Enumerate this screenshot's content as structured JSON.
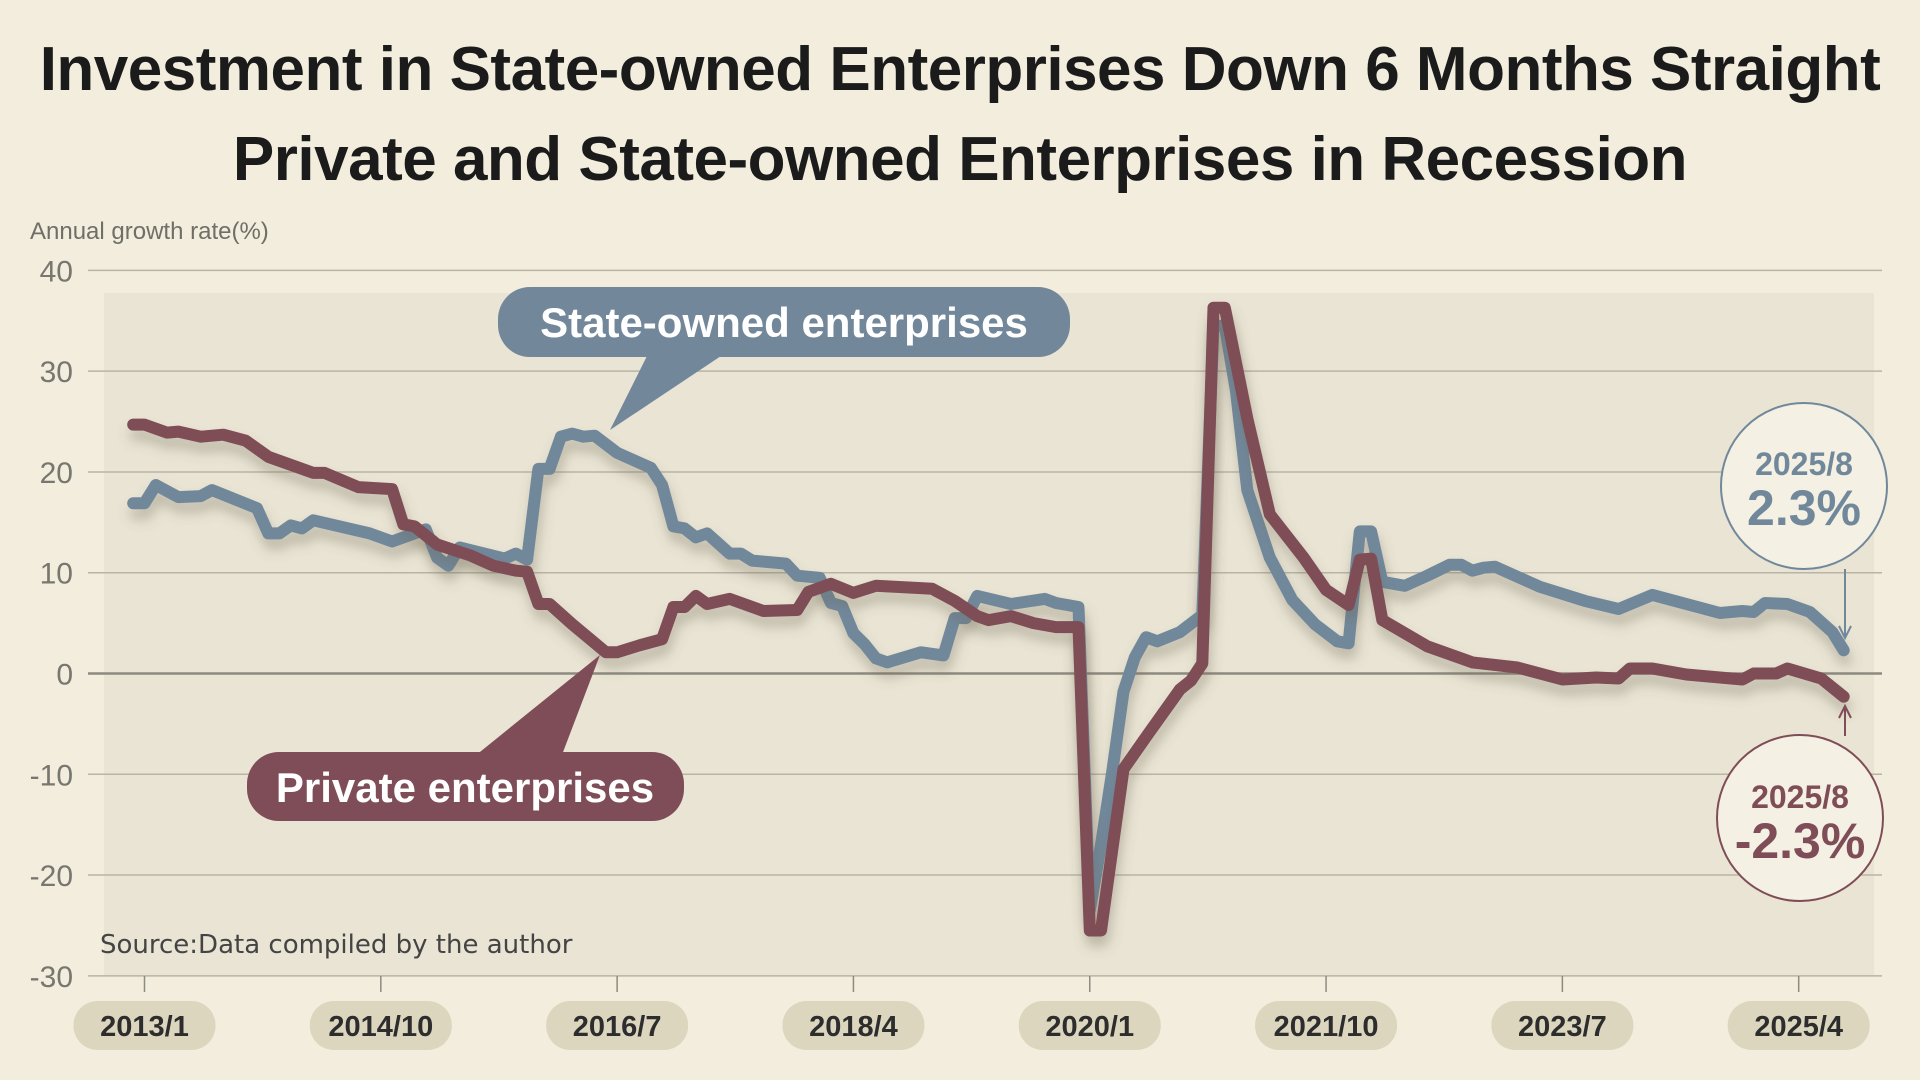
{
  "title": {
    "line1": "Investment in State-owned Enterprises Down 6 Months Straight",
    "line2": "Private and State-owned Enterprises in Recession"
  },
  "source": "Source:Data compiled by the author",
  "chart_data": {
    "type": "line",
    "title": "Investment in State-owned Enterprises Down 6 Months Straight / Private and State-owned Enterprises in Recession",
    "ylabel": "Annual growth rate(%)",
    "xlabel": "",
    "x_unit": "months since 2013/1",
    "ylim": [
      -30,
      40
    ],
    "yticks": [
      40,
      30,
      20,
      10,
      0,
      -10,
      -20,
      -30
    ],
    "xticks": [
      "2013/1",
      "2014/10",
      "2016/7",
      "2018/4",
      "2020/1",
      "2021/10",
      "2023/7",
      "2025/4"
    ],
    "grid": true,
    "colors": {
      "state": "#71889b",
      "private": "#7f4d57",
      "background": "#f2eddd",
      "plot": "#e9e4d4",
      "pill": "#ddd6bf"
    },
    "series": [
      {
        "name": "State-owned enterprises",
        "key": "state",
        "points": [
          [
            -1,
            16.9
          ],
          [
            0,
            16.9
          ],
          [
            1,
            18.7
          ],
          [
            3,
            17.5
          ],
          [
            5,
            17.6
          ],
          [
            6,
            18.2
          ],
          [
            10,
            16.4
          ],
          [
            11,
            13.9
          ],
          [
            12,
            13.9
          ],
          [
            13,
            14.7
          ],
          [
            14,
            14.4
          ],
          [
            15,
            15.2
          ],
          [
            20,
            13.9
          ],
          [
            22,
            13.1
          ],
          [
            25,
            14.3
          ],
          [
            26,
            11.5
          ],
          [
            27,
            10.7
          ],
          [
            28,
            12.5
          ],
          [
            32,
            11.4
          ],
          [
            33,
            11.9
          ],
          [
            34,
            11.3
          ],
          [
            35,
            20.3
          ],
          [
            36,
            20.3
          ],
          [
            37,
            23.5
          ],
          [
            38,
            23.8
          ],
          [
            39,
            23.5
          ],
          [
            40,
            23.6
          ],
          [
            42,
            21.9
          ],
          [
            45,
            20.4
          ],
          [
            46,
            18.7
          ],
          [
            47,
            14.6
          ],
          [
            48,
            14.4
          ],
          [
            49,
            13.5
          ],
          [
            50,
            13.9
          ],
          [
            52,
            11.9
          ],
          [
            53,
            11.9
          ],
          [
            54,
            11.2
          ],
          [
            57,
            10.9
          ],
          [
            58,
            9.7
          ],
          [
            60,
            9.5
          ],
          [
            61,
            7.0
          ],
          [
            62,
            6.7
          ],
          [
            63,
            4.0
          ],
          [
            64,
            2.9
          ],
          [
            65,
            1.5
          ],
          [
            66,
            1.1
          ],
          [
            69,
            2.1
          ],
          [
            71,
            1.8
          ],
          [
            72,
            5.5
          ],
          [
            73,
            5.5
          ],
          [
            74,
            7.7
          ],
          [
            77,
            6.9
          ],
          [
            80,
            7.4
          ],
          [
            81,
            7.0
          ],
          [
            82,
            6.8
          ],
          [
            83,
            6.6
          ],
          [
            84,
            -23.5
          ],
          [
            85,
            -17.0
          ],
          [
            86,
            -9.7
          ],
          [
            87,
            -1.8
          ],
          [
            88,
            1.6
          ],
          [
            89,
            3.6
          ],
          [
            90,
            3.2
          ],
          [
            92,
            4.1
          ],
          [
            94,
            5.8
          ],
          [
            95,
            34.5
          ],
          [
            96,
            34.5
          ],
          [
            97,
            28.0
          ],
          [
            98,
            18.2
          ],
          [
            100,
            11.5
          ],
          [
            102,
            7.3
          ],
          [
            104,
            4.9
          ],
          [
            106,
            3.2
          ],
          [
            107,
            3.0
          ],
          [
            108,
            14.1
          ],
          [
            109,
            14.1
          ],
          [
            110,
            9.1
          ],
          [
            112,
            8.7
          ],
          [
            114,
            9.7
          ],
          [
            116,
            10.8
          ],
          [
            117,
            10.8
          ],
          [
            118,
            10.2
          ],
          [
            119,
            10.5
          ],
          [
            120,
            10.6
          ],
          [
            124,
            8.6
          ],
          [
            128,
            7.2
          ],
          [
            131,
            6.4
          ],
          [
            134,
            7.8
          ],
          [
            140,
            6.0
          ],
          [
            142,
            6.2
          ],
          [
            143,
            6.1
          ],
          [
            144,
            7.0
          ],
          [
            146,
            6.9
          ],
          [
            148,
            6.1
          ],
          [
            150,
            4.1
          ],
          [
            151,
            2.3
          ]
        ]
      },
      {
        "name": "Private enterprises",
        "key": "private",
        "points": [
          [
            -1,
            24.7
          ],
          [
            0,
            24.7
          ],
          [
            2,
            23.9
          ],
          [
            3,
            24.0
          ],
          [
            5,
            23.5
          ],
          [
            7,
            23.7
          ],
          [
            9,
            23.1
          ],
          [
            11,
            21.5
          ],
          [
            15,
            19.9
          ],
          [
            16,
            19.9
          ],
          [
            19,
            18.5
          ],
          [
            22,
            18.3
          ],
          [
            23,
            14.8
          ],
          [
            24,
            14.6
          ],
          [
            26,
            12.8
          ],
          [
            29,
            11.7
          ],
          [
            31,
            10.7
          ],
          [
            33,
            10.2
          ],
          [
            34,
            10.1
          ],
          [
            35,
            6.9
          ],
          [
            36,
            6.9
          ],
          [
            38,
            4.9
          ],
          [
            41,
            2.1
          ],
          [
            42,
            2.1
          ],
          [
            44,
            2.8
          ],
          [
            46,
            3.4
          ],
          [
            47,
            6.6
          ],
          [
            48,
            6.6
          ],
          [
            49,
            7.7
          ],
          [
            50,
            6.9
          ],
          [
            52,
            7.4
          ],
          [
            55,
            6.2
          ],
          [
            58,
            6.3
          ],
          [
            59,
            8.1
          ],
          [
            61,
            8.9
          ],
          [
            63,
            8.0
          ],
          [
            65,
            8.7
          ],
          [
            70,
            8.4
          ],
          [
            72,
            7.2
          ],
          [
            74,
            5.7
          ],
          [
            75,
            5.3
          ],
          [
            77,
            5.7
          ],
          [
            79,
            5.0
          ],
          [
            81,
            4.6
          ],
          [
            83,
            4.6
          ],
          [
            84,
            -25.5
          ],
          [
            85,
            -25.5
          ],
          [
            87,
            -9.5
          ],
          [
            89,
            -6.3
          ],
          [
            92,
            -1.6
          ],
          [
            93,
            -0.7
          ],
          [
            94,
            1.0
          ],
          [
            95,
            36.3
          ],
          [
            96,
            36.3
          ],
          [
            98,
            25.3
          ],
          [
            100,
            15.8
          ],
          [
            103,
            11.5
          ],
          [
            105,
            8.3
          ],
          [
            107,
            6.8
          ],
          [
            108,
            11.3
          ],
          [
            109,
            11.4
          ],
          [
            110,
            5.3
          ],
          [
            112,
            4.0
          ],
          [
            114,
            2.7
          ],
          [
            118,
            1.1
          ],
          [
            122,
            0.6
          ],
          [
            124,
            0.0
          ],
          [
            126,
            -0.6
          ],
          [
            129,
            -0.4
          ],
          [
            131,
            -0.5
          ],
          [
            132,
            0.5
          ],
          [
            134,
            0.5
          ],
          [
            137,
            -0.1
          ],
          [
            142,
            -0.6
          ],
          [
            143,
            0.0
          ],
          [
            145,
            0.0
          ],
          [
            146,
            0.5
          ],
          [
            149,
            -0.5
          ],
          [
            151,
            -2.3
          ]
        ]
      }
    ],
    "annotations": {
      "state_label": "State-owned enterprises",
      "private_label": "Private enterprises",
      "state_end": {
        "date": "2025/8",
        "value": "2.3%"
      },
      "private_end": {
        "date": "2025/8",
        "value": "-2.3%"
      }
    }
  }
}
